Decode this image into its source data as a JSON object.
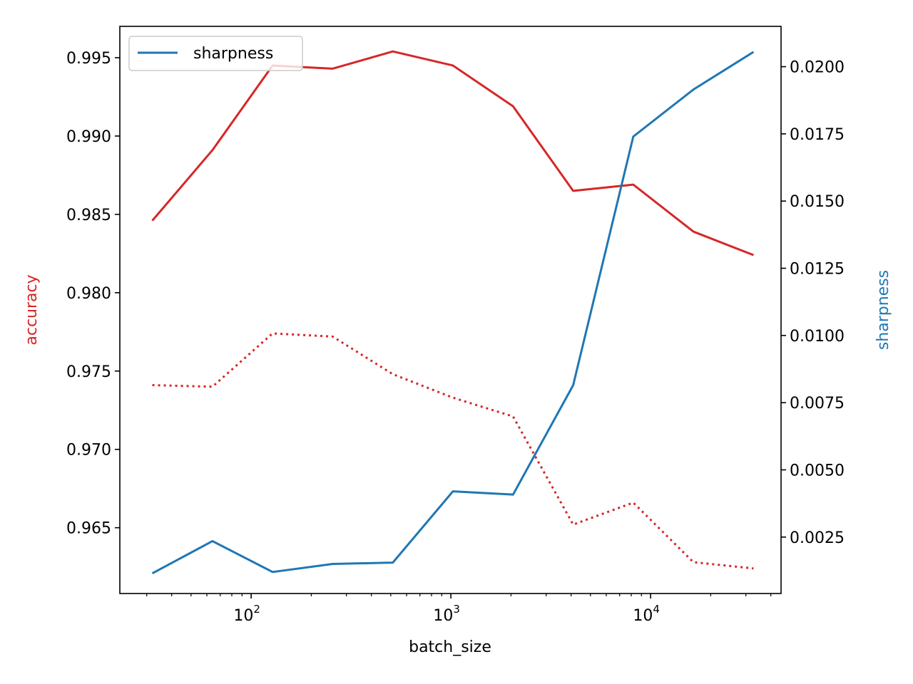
{
  "chart_data": {
    "type": "line",
    "xlabel": "batch_size",
    "ylabel_left": "accuracy",
    "ylabel_right": "sharpness",
    "xscale": "log",
    "xlim": [
      22,
      45000
    ],
    "ylim_left": [
      0.9608,
      0.997
    ],
    "ylim_right": [
      0.0004,
      0.0215
    ],
    "x_ticks": [
      {
        "value": 100,
        "base": "10",
        "exp": "2"
      },
      {
        "value": 1000,
        "base": "10",
        "exp": "3"
      },
      {
        "value": 10000,
        "base": "10",
        "exp": "4"
      }
    ],
    "y_ticks_left": [
      "0.965",
      "0.970",
      "0.975",
      "0.980",
      "0.985",
      "0.990",
      "0.995"
    ],
    "y_ticks_right": [
      "0.0025",
      "0.0050",
      "0.0075",
      "0.0100",
      "0.0125",
      "0.0150",
      "0.0175",
      "0.0200"
    ],
    "x": [
      32,
      64,
      128,
      256,
      512,
      1024,
      2048,
      4096,
      8192,
      16384,
      32768
    ],
    "series": [
      {
        "axis": "left",
        "style": "solid",
        "color": "#d62728",
        "values": [
          0.9846,
          0.9891,
          0.9945,
          0.9943,
          0.9954,
          0.9945,
          0.9919,
          0.9865,
          0.9869,
          0.9839,
          0.9824
        ]
      },
      {
        "axis": "left",
        "style": "dotted",
        "color": "#d62728",
        "values": [
          0.9741,
          0.974,
          0.9774,
          0.9772,
          0.9748,
          0.9733,
          0.9721,
          0.9652,
          0.9666,
          0.9628,
          0.9624
        ]
      },
      {
        "name": "sharpness",
        "axis": "right",
        "style": "solid",
        "color": "#1f77b4",
        "values": [
          0.00115,
          0.00235,
          0.0012,
          0.0015,
          0.00155,
          0.0042,
          0.00408,
          0.00815,
          0.0174,
          0.01915,
          0.02055
        ]
      }
    ],
    "legend": {
      "position": "top-left",
      "entries": [
        "sharpness"
      ]
    },
    "grid": false,
    "colors": {
      "accuracy": "#d62728",
      "sharpness": "#1f77b4"
    }
  }
}
